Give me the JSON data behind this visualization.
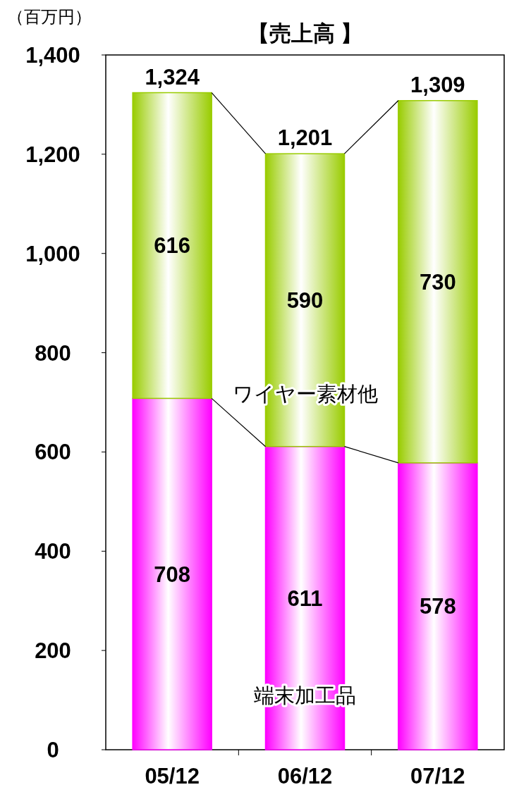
{
  "chart_data": {
    "type": "bar",
    "title": "【売上高 】",
    "ylabel": "（百万円）",
    "categories": [
      "05/12",
      "06/12",
      "07/12"
    ],
    "stacked": true,
    "series": [
      {
        "name": "端末加工品",
        "color": "#ff00ff",
        "values": [
          708,
          611,
          578
        ]
      },
      {
        "name": "ワイヤー素材他",
        "color": "#99cc00",
        "values": [
          616,
          590,
          730
        ]
      }
    ],
    "totals": [
      "1,324",
      "1,201",
      "1,309"
    ],
    "data_labels": true,
    "legend": false,
    "grid": false,
    "ylim": [
      0,
      1400
    ],
    "yticks": [
      0,
      200,
      400,
      600,
      800,
      {
        "value": 1000,
        "label": "1,000"
      },
      {
        "value": 1200,
        "label": "1,200"
      },
      {
        "value": 1400,
        "label": "1,400"
      }
    ]
  }
}
